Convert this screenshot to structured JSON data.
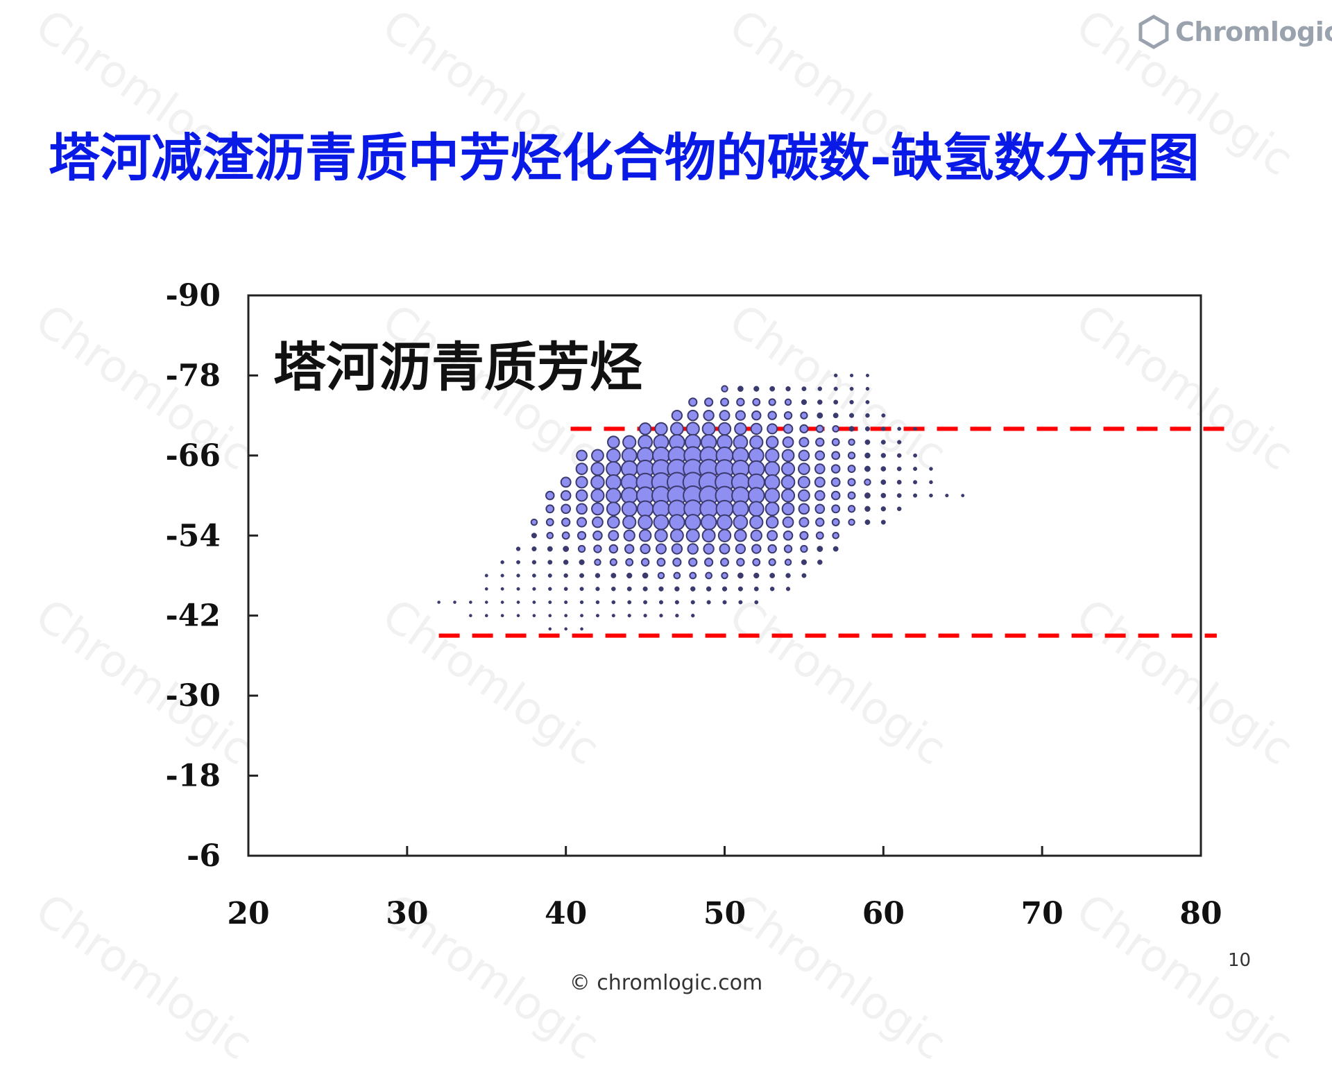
{
  "slide": {
    "title": "塔河减渣沥青质中芳烃化合物的碳数-缺氢数分布图",
    "page_number": "10",
    "footer": "© chromlogic.com",
    "logo_text": "Chromlogic",
    "watermark_text": "Chromlogic",
    "title_color": "#0a1ae6"
  },
  "chart_data": {
    "type": "scatter",
    "title": "",
    "annotation": "塔河沥青质芳烃",
    "xlabel": "",
    "ylabel": "",
    "xlim": [
      20,
      80
    ],
    "ylim": [
      -6,
      -90
    ],
    "xticks": [
      20,
      30,
      40,
      50,
      60,
      70,
      80
    ],
    "yticks": [
      -90,
      -78,
      -66,
      -54,
      -42,
      -30,
      -18,
      -6
    ],
    "bubble_color": "#8f8ff2",
    "bubble_edge_color": "#3a3a6e",
    "grid": false,
    "reference_lines": [
      {
        "y": -70,
        "x_start": 40.3,
        "x_end": 82,
        "color": "#ff0000",
        "style": "dashed"
      },
      {
        "y": -39,
        "x_start": 32,
        "x_end": 81,
        "color": "#ff0000",
        "style": "dashed"
      }
    ],
    "rows": [
      {
        "y": -78,
        "x_start": 57,
        "x_end": 59
      },
      {
        "y": -76,
        "x_start": 50,
        "x_end": 59
      },
      {
        "y": -74,
        "x_start": 48,
        "x_end": 59
      },
      {
        "y": -72,
        "x_start": 47,
        "x_end": 60
      },
      {
        "y": -70,
        "x_start": 45,
        "x_end": 62
      },
      {
        "y": -68,
        "x_start": 43,
        "x_end": 61
      },
      {
        "y": -66,
        "x_start": 41,
        "x_end": 62
      },
      {
        "y": -64,
        "x_start": 41,
        "x_end": 63
      },
      {
        "y": -62,
        "x_start": 40,
        "x_end": 63
      },
      {
        "y": -60,
        "x_start": 39,
        "x_end": 65
      },
      {
        "y": -58,
        "x_start": 39,
        "x_end": 61
      },
      {
        "y": -56,
        "x_start": 38,
        "x_end": 60
      },
      {
        "y": -54,
        "x_start": 38,
        "x_end": 57
      },
      {
        "y": -52,
        "x_start": 37,
        "x_end": 57
      },
      {
        "y": -50,
        "x_start": 36,
        "x_end": 56
      },
      {
        "y": -48,
        "x_start": 35,
        "x_end": 55
      },
      {
        "y": -46,
        "x_start": 35,
        "x_end": 54
      },
      {
        "y": -44,
        "x_start": 32,
        "x_end": 52
      },
      {
        "y": -42,
        "x_start": 34,
        "x_end": 48
      },
      {
        "y": -40,
        "x_start": 39,
        "x_end": 41
      }
    ],
    "peak": {
      "x": 48,
      "y": -62
    },
    "x_unit_step": 1,
    "y_unit_step": 2
  }
}
